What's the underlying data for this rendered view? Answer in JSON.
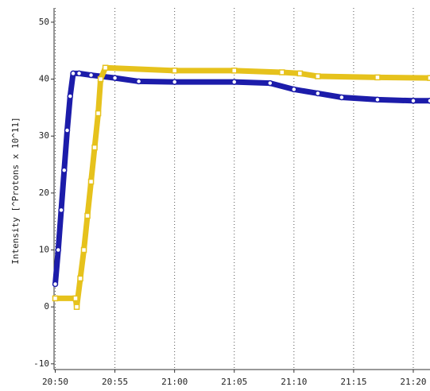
{
  "chart_data": {
    "type": "line",
    "y_label": "Intensity [^Protons x 10^11]",
    "xlim": [
      -0.1,
      31.4
    ],
    "xticks": [
      {
        "value": 0,
        "label": "20:50"
      },
      {
        "value": 5,
        "label": "20:55"
      },
      {
        "value": 10,
        "label": "21:00"
      },
      {
        "value": 15,
        "label": "21:05"
      },
      {
        "value": 20,
        "label": "21:10"
      },
      {
        "value": 25,
        "label": "21:15"
      },
      {
        "value": 30,
        "label": "21:20"
      }
    ],
    "ylim": [
      -11,
      52.5
    ],
    "yticks": [
      -10,
      0,
      10,
      20,
      30,
      40,
      50
    ],
    "grid": "x",
    "series": [
      {
        "color": "#1c1caa",
        "marker": "circle",
        "x": [
          0,
          0.25,
          0.5,
          0.75,
          1,
          1.25,
          1.5,
          2,
          3,
          5,
          7,
          10,
          15,
          18,
          20,
          22,
          24,
          27,
          30,
          31.4
        ],
        "values": [
          4,
          10,
          17,
          24,
          31,
          37,
          41,
          41,
          40.7,
          40.2,
          39.6,
          39.5,
          39.5,
          39.3,
          38.2,
          37.5,
          36.8,
          36.4,
          36.2,
          36.2
        ]
      },
      {
        "color": "#e6c21c",
        "marker": "square",
        "x": [
          0,
          1.7,
          1.8,
          2.1,
          2.4,
          2.7,
          3,
          3.3,
          3.6,
          3.8,
          4.2,
          10,
          15,
          19,
          20.5,
          22,
          27,
          31.4
        ],
        "values": [
          1.5,
          1.5,
          0,
          5,
          10,
          16,
          22,
          28,
          34,
          40,
          42,
          41.5,
          41.5,
          41.2,
          41,
          40.5,
          40.3,
          40.2
        ]
      }
    ]
  }
}
